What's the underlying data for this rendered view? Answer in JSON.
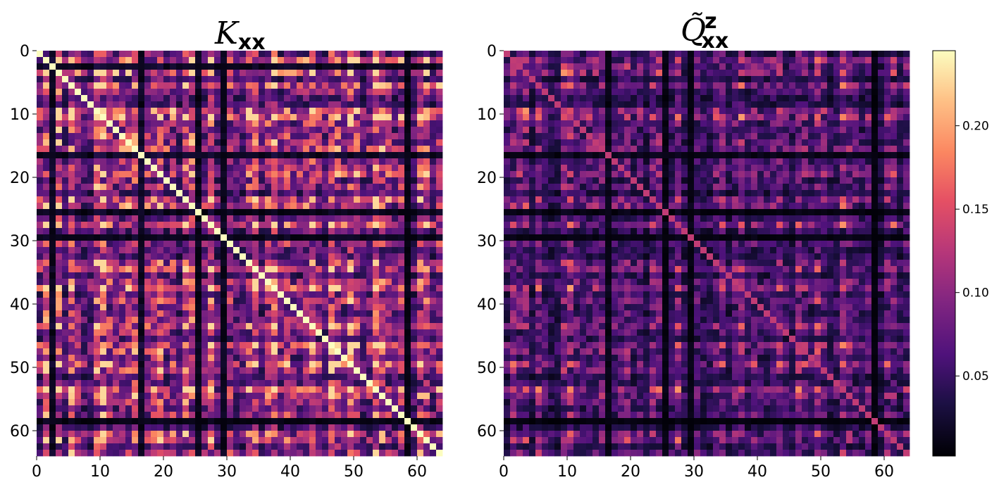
{
  "chart_data": [
    {
      "type": "heatmap",
      "title": "K",
      "title_subscript": "xx",
      "rows": 64,
      "cols": 64,
      "xlim": [
        0,
        64
      ],
      "ylim": [
        64,
        0
      ],
      "xticks": [
        0,
        10,
        20,
        30,
        40,
        50,
        60
      ],
      "yticks": [
        0,
        10,
        20,
        30,
        40,
        50,
        60
      ],
      "colormap": "magma",
      "value_range": [
        0.0,
        0.245
      ],
      "diagonal_value": 0.245,
      "low_value_indices": [
        2,
        16,
        25,
        29,
        58
      ],
      "offdiag_mean": 0.12,
      "seed": 7
    },
    {
      "type": "heatmap",
      "title": "Q̃",
      "title_subscript": "xx",
      "title_superscript": "z",
      "rows": 64,
      "cols": 64,
      "xlim": [
        0,
        64
      ],
      "ylim": [
        64,
        0
      ],
      "xticks": [
        0,
        10,
        20,
        30,
        40,
        50,
        60
      ],
      "yticks": [
        0,
        10,
        20,
        30,
        40,
        50,
        60
      ],
      "colormap": "magma",
      "value_range": [
        0.0,
        0.245
      ],
      "diagonal_value": 0.13,
      "low_value_indices": [
        16,
        25,
        29,
        58
      ],
      "offdiag_mean": 0.07,
      "seed": 7
    }
  ],
  "colorbar": {
    "ticks": [
      "0.05",
      "0.10",
      "0.15",
      "0.20"
    ],
    "tick_values": [
      0.05,
      0.1,
      0.15,
      0.2
    ],
    "range": [
      0.002,
      0.245
    ]
  }
}
